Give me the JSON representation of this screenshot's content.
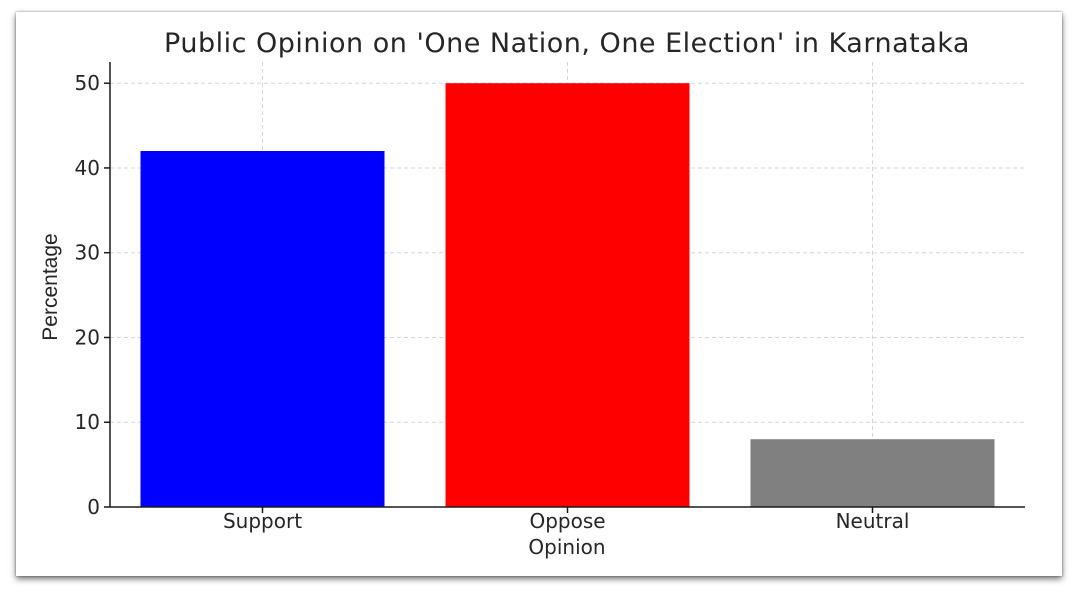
{
  "chart_data": {
    "type": "bar",
    "title": "Public Opinion on 'One Nation, One Election' in Karnataka",
    "xlabel": "Opinion",
    "ylabel": "Percentage",
    "categories": [
      "Support",
      "Oppose",
      "Neutral"
    ],
    "values": [
      42,
      50,
      8
    ],
    "colors": [
      "#0000ff",
      "#ff0000",
      "#808080"
    ],
    "ylim": [
      0,
      52.5
    ],
    "yticks": [
      0,
      10,
      20,
      30,
      40,
      50
    ],
    "grid": true,
    "legend": "none"
  }
}
